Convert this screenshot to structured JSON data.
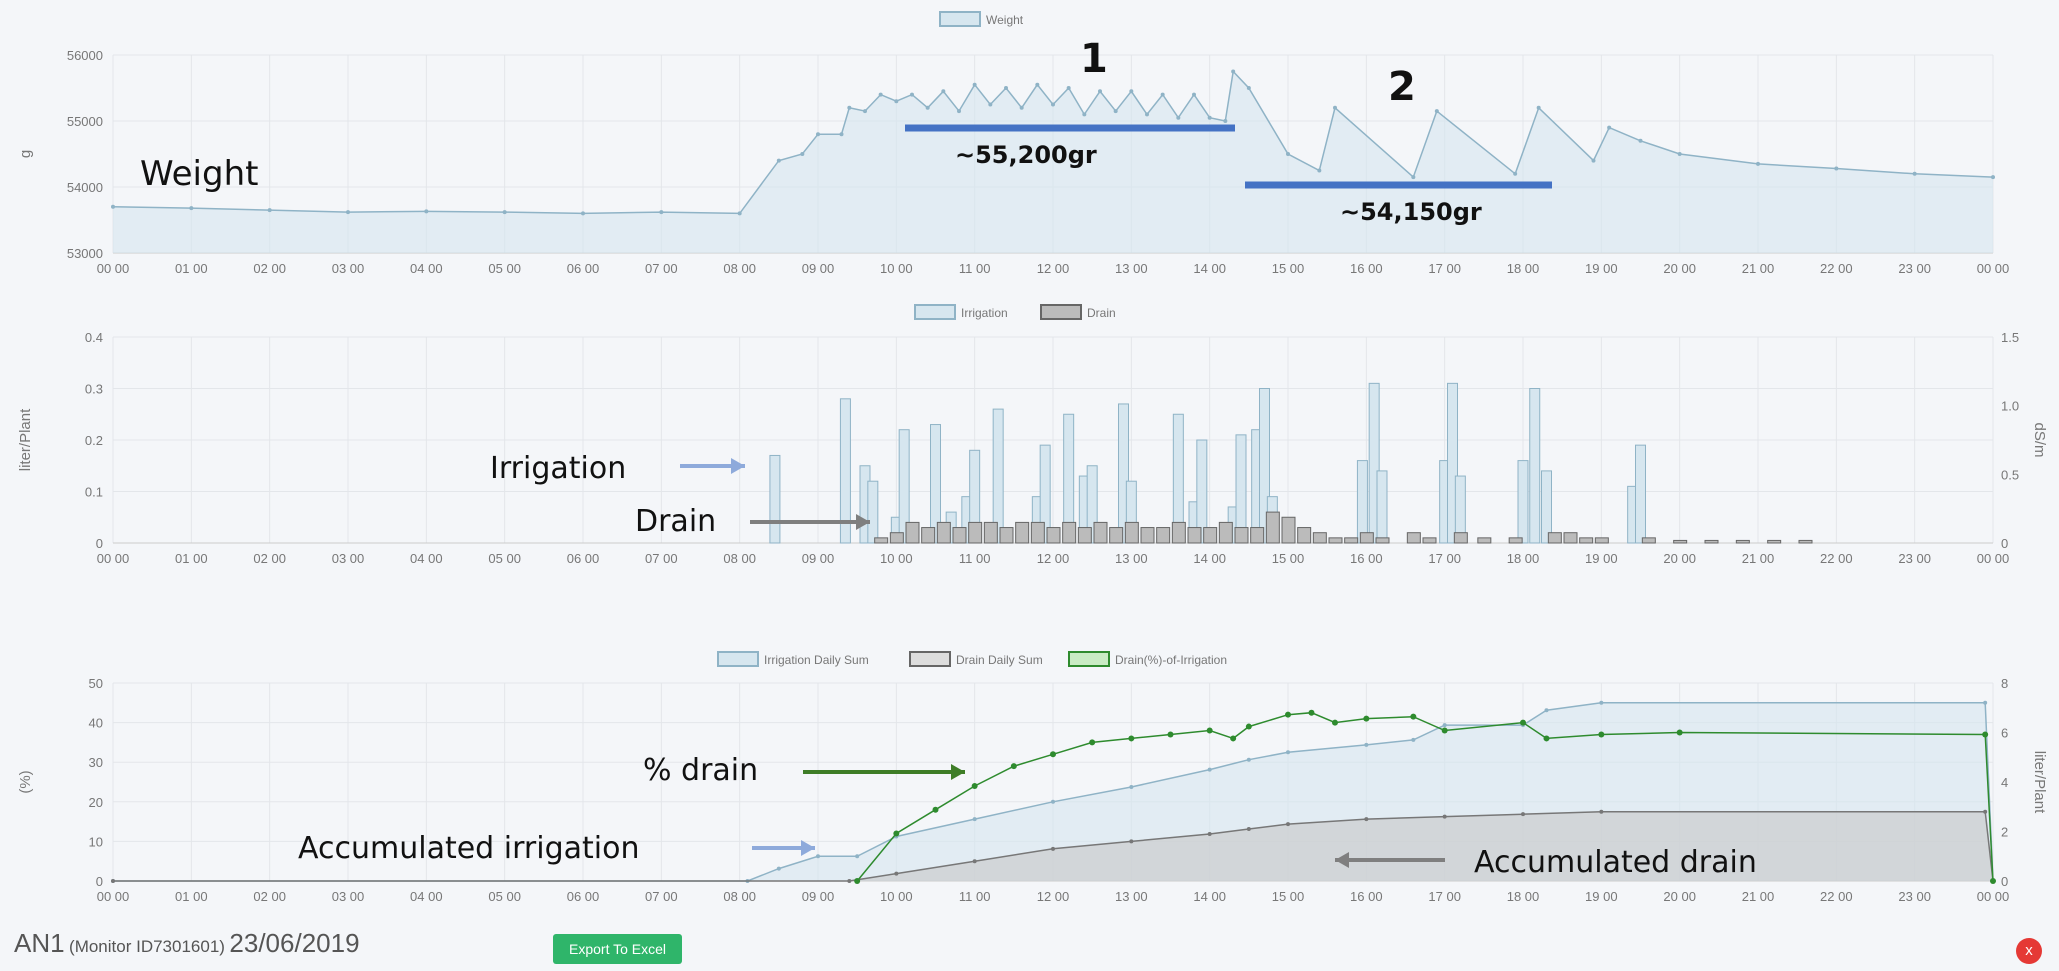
{
  "colors": {
    "irrigation": "#8fb3c6",
    "irrigation_fill": "#d6e6ef",
    "drain": "#666",
    "drain_fill": "#bbb",
    "pct": "#2e8b2e",
    "annot_bar": "#4472c4",
    "arrow_blue": "#8eaadb",
    "arrow_gray": "#7f7f7f",
    "arrow_green": "#3e7d27"
  },
  "x_ticks": [
    "00 00",
    "01 00",
    "02 00",
    "03 00",
    "04 00",
    "05 00",
    "06 00",
    "07 00",
    "08 00",
    "09 00",
    "10 00",
    "11 00",
    "12 00",
    "13 00",
    "14 00",
    "15 00",
    "16 00",
    "17 00",
    "18 00",
    "19 00",
    "20 00",
    "21 00",
    "22 00",
    "23 00",
    "00 00"
  ],
  "chart_data": [
    {
      "type": "area",
      "title": "Weight",
      "legend": [
        "Weight"
      ],
      "ylabel": "g",
      "ylim": [
        53000,
        56000
      ],
      "yticks": [
        "53000",
        "54000",
        "55000",
        "56000"
      ],
      "xlim": [
        0,
        24
      ],
      "points": [
        [
          0,
          53700
        ],
        [
          1,
          53680
        ],
        [
          2,
          53650
        ],
        [
          3,
          53620
        ],
        [
          4,
          53630
        ],
        [
          5,
          53620
        ],
        [
          6,
          53600
        ],
        [
          7,
          53620
        ],
        [
          8,
          53600
        ],
        [
          8.5,
          54400
        ],
        [
          8.8,
          54500
        ],
        [
          9,
          54800
        ],
        [
          9.3,
          54800
        ],
        [
          9.4,
          55200
        ],
        [
          9.6,
          55150
        ],
        [
          9.8,
          55400
        ],
        [
          10,
          55300
        ],
        [
          10.2,
          55400
        ],
        [
          10.4,
          55200
        ],
        [
          10.6,
          55450
        ],
        [
          10.8,
          55150
        ],
        [
          11,
          55550
        ],
        [
          11.2,
          55250
        ],
        [
          11.4,
          55500
        ],
        [
          11.6,
          55200
        ],
        [
          11.8,
          55550
        ],
        [
          12,
          55250
        ],
        [
          12.2,
          55500
        ],
        [
          12.4,
          55100
        ],
        [
          12.6,
          55450
        ],
        [
          12.8,
          55150
        ],
        [
          13,
          55450
        ],
        [
          13.2,
          55100
        ],
        [
          13.4,
          55400
        ],
        [
          13.6,
          55050
        ],
        [
          13.8,
          55400
        ],
        [
          14,
          55050
        ],
        [
          14.2,
          55000
        ],
        [
          14.3,
          55750
        ],
        [
          14.5,
          55500
        ],
        [
          15,
          54500
        ],
        [
          15.4,
          54250
        ],
        [
          15.6,
          55200
        ],
        [
          16.6,
          54150
        ],
        [
          16.9,
          55150
        ],
        [
          17.9,
          54200
        ],
        [
          18.2,
          55200
        ],
        [
          18.9,
          54400
        ],
        [
          19.1,
          54900
        ],
        [
          19.5,
          54700
        ],
        [
          20,
          54500
        ],
        [
          21,
          54350
        ],
        [
          22,
          54280
        ],
        [
          23,
          54200
        ],
        [
          24,
          54150
        ]
      ]
    },
    {
      "type": "bar",
      "legend": [
        "Irrigation",
        "Drain"
      ],
      "ylabel": "liter/Plant",
      "ylabel_right": "dS/m",
      "ylim": [
        0,
        0.4
      ],
      "ylim_right": [
        0,
        1.5
      ],
      "yticks": [
        "0",
        "0.1",
        "0.2",
        "0.3",
        "0.4"
      ],
      "yticks_right": [
        "0",
        "0.5",
        "1.0",
        "1.5"
      ],
      "irrigation": [
        [
          8.45,
          0.17
        ],
        [
          9.35,
          0.28
        ],
        [
          9.6,
          0.15
        ],
        [
          9.7,
          0.12
        ],
        [
          10,
          0.05
        ],
        [
          10.1,
          0.22
        ],
        [
          10.5,
          0.23
        ],
        [
          10.7,
          0.06
        ],
        [
          10.9,
          0.09
        ],
        [
          11,
          0.18
        ],
        [
          11.3,
          0.26
        ],
        [
          11.8,
          0.09
        ],
        [
          11.9,
          0.19
        ],
        [
          12.2,
          0.25
        ],
        [
          12.4,
          0.13
        ],
        [
          12.5,
          0.15
        ],
        [
          12.9,
          0.27
        ],
        [
          13,
          0.12
        ],
        [
          13.6,
          0.25
        ],
        [
          13.8,
          0.08
        ],
        [
          13.9,
          0.2
        ],
        [
          14.3,
          0.07
        ],
        [
          14.4,
          0.21
        ],
        [
          14.6,
          0.22
        ],
        [
          14.7,
          0.3
        ],
        [
          14.8,
          0.09
        ],
        [
          15.95,
          0.16
        ],
        [
          16.1,
          0.31
        ],
        [
          16.2,
          0.14
        ],
        [
          17,
          0.16
        ],
        [
          17.1,
          0.31
        ],
        [
          17.2,
          0.13
        ],
        [
          18,
          0.16
        ],
        [
          18.15,
          0.3
        ],
        [
          18.3,
          0.14
        ],
        [
          19.4,
          0.11
        ],
        [
          19.5,
          0.19
        ]
      ],
      "drain": [
        [
          9.8,
          0.01
        ],
        [
          10,
          0.02
        ],
        [
          10.2,
          0.04
        ],
        [
          10.4,
          0.03
        ],
        [
          10.6,
          0.04
        ],
        [
          10.8,
          0.03
        ],
        [
          11,
          0.04
        ],
        [
          11.2,
          0.04
        ],
        [
          11.4,
          0.03
        ],
        [
          11.6,
          0.04
        ],
        [
          11.8,
          0.04
        ],
        [
          12,
          0.03
        ],
        [
          12.2,
          0.04
        ],
        [
          12.4,
          0.03
        ],
        [
          12.6,
          0.04
        ],
        [
          12.8,
          0.03
        ],
        [
          13,
          0.04
        ],
        [
          13.2,
          0.03
        ],
        [
          13.4,
          0.03
        ],
        [
          13.6,
          0.04
        ],
        [
          13.8,
          0.03
        ],
        [
          14,
          0.03
        ],
        [
          14.2,
          0.04
        ],
        [
          14.4,
          0.03
        ],
        [
          14.6,
          0.03
        ],
        [
          14.8,
          0.06
        ],
        [
          15,
          0.05
        ],
        [
          15.2,
          0.03
        ],
        [
          15.4,
          0.02
        ],
        [
          15.6,
          0.01
        ],
        [
          15.8,
          0.01
        ],
        [
          16,
          0.02
        ],
        [
          16.2,
          0.01
        ],
        [
          16.6,
          0.02
        ],
        [
          16.8,
          0.01
        ],
        [
          17.2,
          0.02
        ],
        [
          17.5,
          0.01
        ],
        [
          17.9,
          0.01
        ],
        [
          18.4,
          0.02
        ],
        [
          18.6,
          0.02
        ],
        [
          18.8,
          0.01
        ],
        [
          19,
          0.01
        ],
        [
          19.6,
          0.01
        ],
        [
          20,
          0.005
        ],
        [
          20.4,
          0.005
        ],
        [
          20.8,
          0.005
        ],
        [
          21.2,
          0.005
        ],
        [
          21.6,
          0.005
        ]
      ]
    },
    {
      "type": "line",
      "legend": [
        "Irrigation Daily Sum",
        "Drain Daily Sum",
        "Drain(%)-of-Irrigation"
      ],
      "ylabel": "(%)",
      "ylabel_right": "liter/Plant",
      "ylim": [
        0,
        50
      ],
      "ylim_right": [
        0,
        8
      ],
      "yticks": [
        "0",
        "10",
        "20",
        "30",
        "40",
        "50"
      ],
      "yticks_right": [
        "0",
        "2",
        "4",
        "6",
        "8"
      ],
      "irrigation_sum": [
        [
          0,
          0
        ],
        [
          8.1,
          0
        ],
        [
          8.5,
          0.5
        ],
        [
          9,
          1
        ],
        [
          9.5,
          1
        ],
        [
          10,
          1.8
        ],
        [
          11,
          2.5
        ],
        [
          12,
          3.2
        ],
        [
          13,
          3.8
        ],
        [
          14,
          4.5
        ],
        [
          14.5,
          4.9
        ],
        [
          15,
          5.2
        ],
        [
          16,
          5.5
        ],
        [
          16.6,
          5.7
        ],
        [
          17,
          6.3
        ],
        [
          18,
          6.3
        ],
        [
          18.3,
          6.9
        ],
        [
          19,
          7.2
        ],
        [
          23.9,
          7.2
        ],
        [
          24,
          0
        ]
      ],
      "drain_sum": [
        [
          0,
          0
        ],
        [
          9.4,
          0
        ],
        [
          10,
          0.3
        ],
        [
          11,
          0.8
        ],
        [
          12,
          1.3
        ],
        [
          13,
          1.6
        ],
        [
          14,
          1.9
        ],
        [
          14.5,
          2.1
        ],
        [
          15,
          2.3
        ],
        [
          16,
          2.5
        ],
        [
          17,
          2.6
        ],
        [
          18,
          2.7
        ],
        [
          19,
          2.8
        ],
        [
          23.9,
          2.8
        ],
        [
          24,
          0
        ]
      ],
      "drain_pct": [
        [
          9.5,
          0
        ],
        [
          10,
          12
        ],
        [
          10.5,
          18
        ],
        [
          11,
          24
        ],
        [
          11.5,
          29
        ],
        [
          12,
          32
        ],
        [
          12.5,
          35
        ],
        [
          13,
          36
        ],
        [
          13.5,
          37
        ],
        [
          14,
          38
        ],
        [
          14.3,
          36
        ],
        [
          14.5,
          39
        ],
        [
          15,
          42
        ],
        [
          15.3,
          42.5
        ],
        [
          15.6,
          40
        ],
        [
          16,
          41
        ],
        [
          16.6,
          41.5
        ],
        [
          17,
          38
        ],
        [
          18,
          40
        ],
        [
          18.3,
          36
        ],
        [
          19,
          37
        ],
        [
          20,
          37.5
        ],
        [
          23.9,
          37
        ],
        [
          24,
          0
        ]
      ]
    }
  ],
  "annotations": {
    "n1": "1",
    "v1": "~55,200gr",
    "n2": "2",
    "v2": "~54,150gr",
    "weight": "Weight",
    "irrigation": "Irrigation",
    "drain": "Drain",
    "pct_drain": "% drain",
    "acc_irr": "Accumulated irrigation",
    "acc_drain": "Accumulated drain"
  },
  "footer": {
    "name": "AN1",
    "monitor": "(Monitor ID7301601)",
    "date": "23/06/2019",
    "export": "Export To Excel",
    "close": "x"
  }
}
